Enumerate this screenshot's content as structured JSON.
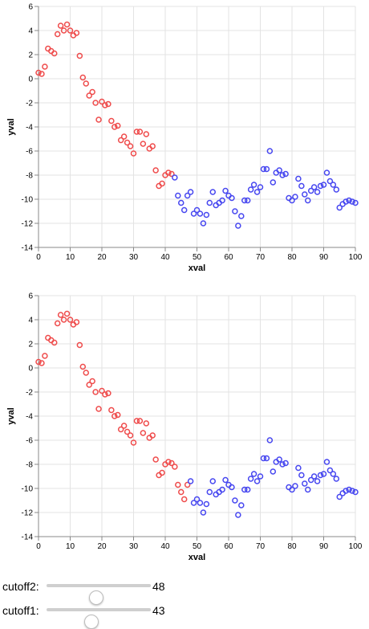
{
  "controls": {
    "cutoff2": {
      "label": "cutoff2:",
      "value": 48,
      "min": 0,
      "max": 100
    },
    "cutoff1": {
      "label": "cutoff1:",
      "value": 43,
      "min": 0,
      "max": 100
    }
  },
  "colors": {
    "below": "#ef4b4b",
    "above": "#4747f0",
    "grid": "#e3e3e3",
    "axis": "#888888"
  },
  "chart_data": [
    {
      "type": "scatter",
      "xlabel": "xval",
      "ylabel": "yval",
      "xlim": [
        0,
        100
      ],
      "ylim": [
        -14,
        6
      ],
      "xticks": [
        0,
        10,
        20,
        30,
        40,
        50,
        60,
        70,
        80,
        90,
        100
      ],
      "yticks": [
        -14,
        -12,
        -10,
        -8,
        -6,
        -4,
        -2,
        0,
        2,
        4,
        6
      ],
      "grid": true,
      "color_split_at": 43,
      "x": [
        0,
        1,
        2,
        3,
        4,
        5,
        6,
        7,
        8,
        9,
        10,
        11,
        12,
        13,
        14,
        15,
        16,
        17,
        18,
        19,
        20,
        21,
        22,
        23,
        24,
        25,
        26,
        27,
        28,
        29,
        30,
        31,
        32,
        33,
        34,
        35,
        36,
        37,
        38,
        39,
        40,
        41,
        42,
        43,
        44,
        45,
        46,
        47,
        48,
        49,
        50,
        51,
        52,
        53,
        54,
        55,
        56,
        57,
        58,
        59,
        60,
        61,
        62,
        63,
        64,
        65,
        66,
        67,
        68,
        69,
        70,
        71,
        72,
        73,
        74,
        75,
        76,
        77,
        78,
        79,
        80,
        81,
        82,
        83,
        84,
        85,
        86,
        87,
        88,
        89,
        90,
        91,
        92,
        93,
        94,
        95,
        96,
        97,
        98,
        99,
        100
      ],
      "y": [
        0.5,
        0.4,
        1.0,
        2.5,
        2.3,
        2.1,
        3.7,
        4.4,
        4.0,
        4.5,
        4.0,
        3.6,
        3.8,
        1.9,
        0.1,
        -0.4,
        -1.4,
        -1.1,
        -2.0,
        -3.4,
        -1.9,
        -2.2,
        -2.1,
        -3.5,
        -4.0,
        -3.9,
        -5.1,
        -4.8,
        -5.3,
        -5.6,
        -6.2,
        -4.4,
        -4.4,
        -5.4,
        -4.6,
        -5.8,
        -5.6,
        -7.6,
        -8.9,
        -8.7,
        -8.0,
        -7.8,
        -7.9,
        -8.2,
        -9.7,
        -10.3,
        -10.9,
        -9.7,
        -9.4,
        -11.2,
        -10.9,
        -11.2,
        -12.0,
        -11.3,
        -10.3,
        -9.4,
        -10.5,
        -10.3,
        -10.1,
        -9.3,
        -9.7,
        -9.9,
        -11.0,
        -12.2,
        -11.4,
        -10.1,
        -10.1,
        -9.2,
        -8.8,
        -9.4,
        -9.0,
        -7.5,
        -7.5,
        -6.0,
        -8.6,
        -7.8,
        -7.6,
        -8.0,
        -7.9,
        -9.9,
        -10.1,
        -9.8,
        -8.3,
        -8.9,
        -9.6,
        -10.1,
        -9.3,
        -9.0,
        -9.4,
        -8.9,
        -8.8,
        -7.8,
        -8.5,
        -8.8,
        -9.2,
        -10.7,
        -10.4,
        -10.2,
        -10.1,
        -10.2,
        -10.3
      ]
    },
    {
      "type": "scatter",
      "xlabel": "xval",
      "ylabel": "yval",
      "xlim": [
        0,
        100
      ],
      "ylim": [
        -14,
        6
      ],
      "xticks": [
        0,
        10,
        20,
        30,
        40,
        50,
        60,
        70,
        80,
        90,
        100
      ],
      "yticks": [
        -14,
        -12,
        -10,
        -8,
        -6,
        -4,
        -2,
        0,
        2,
        4,
        6
      ],
      "grid": true,
      "color_split_at": 48,
      "x": [
        0,
        1,
        2,
        3,
        4,
        5,
        6,
        7,
        8,
        9,
        10,
        11,
        12,
        13,
        14,
        15,
        16,
        17,
        18,
        19,
        20,
        21,
        22,
        23,
        24,
        25,
        26,
        27,
        28,
        29,
        30,
        31,
        32,
        33,
        34,
        35,
        36,
        37,
        38,
        39,
        40,
        41,
        42,
        43,
        44,
        45,
        46,
        47,
        48,
        49,
        50,
        51,
        52,
        53,
        54,
        55,
        56,
        57,
        58,
        59,
        60,
        61,
        62,
        63,
        64,
        65,
        66,
        67,
        68,
        69,
        70,
        71,
        72,
        73,
        74,
        75,
        76,
        77,
        78,
        79,
        80,
        81,
        82,
        83,
        84,
        85,
        86,
        87,
        88,
        89,
        90,
        91,
        92,
        93,
        94,
        95,
        96,
        97,
        98,
        99,
        100
      ],
      "y": [
        0.5,
        0.4,
        1.0,
        2.5,
        2.3,
        2.1,
        3.7,
        4.4,
        4.0,
        4.5,
        4.0,
        3.6,
        3.8,
        1.9,
        0.1,
        -0.4,
        -1.4,
        -1.1,
        -2.0,
        -3.4,
        -1.9,
        -2.2,
        -2.1,
        -3.5,
        -4.0,
        -3.9,
        -5.1,
        -4.8,
        -5.3,
        -5.6,
        -6.2,
        -4.4,
        -4.4,
        -5.4,
        -4.6,
        -5.8,
        -5.6,
        -7.6,
        -8.9,
        -8.7,
        -8.0,
        -7.8,
        -7.9,
        -8.2,
        -9.7,
        -10.3,
        -10.9,
        -9.7,
        -9.4,
        -11.2,
        -10.9,
        -11.2,
        -12.0,
        -11.3,
        -10.3,
        -9.4,
        -10.5,
        -10.3,
        -10.1,
        -9.3,
        -9.7,
        -9.9,
        -11.0,
        -12.2,
        -11.4,
        -10.1,
        -10.1,
        -9.2,
        -8.8,
        -9.4,
        -9.0,
        -7.5,
        -7.5,
        -6.0,
        -8.6,
        -7.8,
        -7.6,
        -8.0,
        -7.9,
        -9.9,
        -10.1,
        -9.8,
        -8.3,
        -8.9,
        -9.6,
        -10.1,
        -9.3,
        -9.0,
        -9.4,
        -8.9,
        -8.8,
        -7.8,
        -8.5,
        -8.8,
        -9.2,
        -10.7,
        -10.4,
        -10.2,
        -10.1,
        -10.2,
        -10.3
      ]
    }
  ]
}
